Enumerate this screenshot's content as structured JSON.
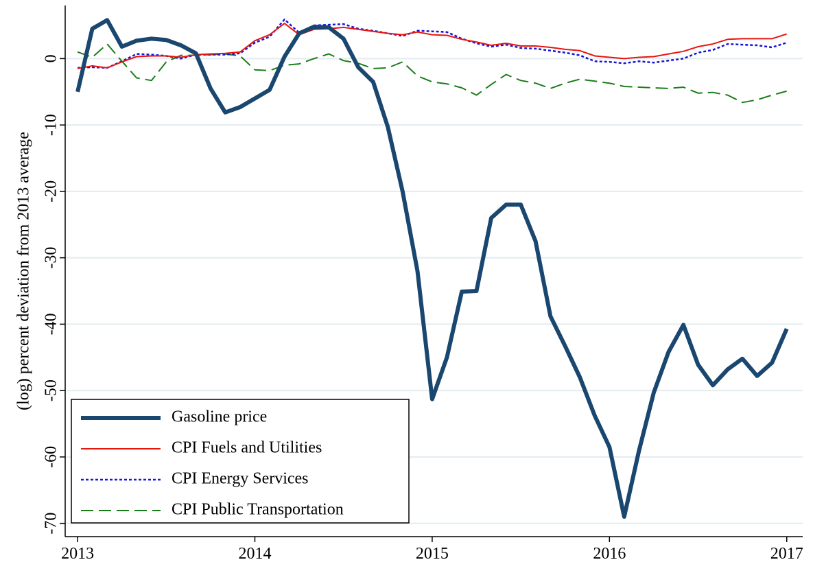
{
  "chart_data": {
    "type": "line",
    "ylabel": "(log) percent deviation from 2013 average",
    "x": [
      2013,
      2013.083,
      2013.167,
      2013.25,
      2013.333,
      2013.417,
      2013.5,
      2013.583,
      2013.667,
      2013.75,
      2013.833,
      2013.917,
      2014,
      2014.083,
      2014.167,
      2014.25,
      2014.333,
      2014.417,
      2014.5,
      2014.583,
      2014.667,
      2014.75,
      2014.833,
      2014.917,
      2015,
      2015.083,
      2015.167,
      2015.25,
      2015.333,
      2015.417,
      2015.5,
      2015.583,
      2015.667,
      2015.75,
      2015.833,
      2015.917,
      2016,
      2016.083,
      2016.167,
      2016.25,
      2016.333,
      2016.417,
      2016.5,
      2016.583,
      2016.667,
      2016.75,
      2016.833,
      2016.917,
      2017
    ],
    "series": [
      {
        "name": "Gasoline price",
        "color": "#1a476f",
        "style": "thick",
        "values": [
          -5,
          4.5,
          5.8,
          1.8,
          2.7,
          3.0,
          2.8,
          2.0,
          0.8,
          -4.5,
          -8.1,
          -7.3,
          -6,
          -4.7,
          0.3,
          3.8,
          4.8,
          4.7,
          3,
          -1.3,
          -3.5,
          -10.3,
          -20,
          -32,
          -51.3,
          -45,
          -35.1,
          -35,
          -24,
          -22,
          -22,
          -27.5,
          -38.8,
          -43.3,
          -48,
          -53.8,
          -58.5,
          -69,
          -59,
          -50.3,
          -44.2,
          -40.1,
          -46.1,
          -49.2,
          -46.8,
          -45.2,
          -47.8,
          -45.8,
          -40.7
        ]
      },
      {
        "name": "CPI Fuels and Utilities",
        "color": "#e8150f",
        "style": "solid",
        "values": [
          -1.5,
          -1.1,
          -1.4,
          -0.5,
          0.3,
          0.4,
          0.4,
          0.2,
          0.6,
          0.7,
          0.8,
          1,
          2.7,
          3.6,
          5.3,
          3.6,
          4.4,
          4.5,
          4.7,
          4.4,
          4.1,
          3.8,
          3.6,
          4,
          3.6,
          3.5,
          2.9,
          2.5,
          2,
          2.3,
          1.9,
          1.9,
          1.7,
          1.4,
          1.2,
          0.4,
          0.2,
          0,
          0.2,
          0.3,
          0.7,
          1.1,
          1.8,
          2.2,
          2.9,
          3,
          3,
          3,
          3.7
        ]
      },
      {
        "name": "CPI Energy Services",
        "color": "#1515d8",
        "style": "dotted",
        "values": [
          -1.4,
          -1.3,
          -1.4,
          -0.4,
          0.7,
          0.6,
          0.4,
          0,
          0.6,
          0.6,
          0.6,
          0.8,
          2.4,
          3.3,
          5.9,
          3.9,
          5,
          5.1,
          5.2,
          4.5,
          4.2,
          3.8,
          3.4,
          4.2,
          4.1,
          4,
          3,
          2.3,
          1.8,
          2.1,
          1.6,
          1.5,
          1.2,
          0.9,
          0.5,
          -0.4,
          -0.5,
          -0.7,
          -0.4,
          -0.6,
          -0.3,
          0,
          0.9,
          1.3,
          2.2,
          2.1,
          2,
          1.7,
          2.4
        ]
      },
      {
        "name": "CPI Public Transportation",
        "color": "#1a7d1a",
        "style": "dashed",
        "values": [
          1,
          0.2,
          2.2,
          -0.4,
          -2.9,
          -3.3,
          -0.5,
          0.5,
          0.5,
          0.6,
          0.7,
          0.4,
          -1.7,
          -1.8,
          -1,
          -0.8,
          0,
          0.7,
          -0.3,
          -0.7,
          -1.5,
          -1.4,
          -0.5,
          -2.6,
          -3.5,
          -3.8,
          -4.4,
          -5.5,
          -3.9,
          -2.4,
          -3.3,
          -3.7,
          -4.5,
          -3.7,
          -3.1,
          -3.4,
          -3.7,
          -4.2,
          -4.3,
          -4.4,
          -4.5,
          -4.3,
          -5.2,
          -5.1,
          -5.5,
          -6.6,
          -6.2,
          -5.5,
          -4.9
        ]
      }
    ],
    "xlim": [
      2012.93,
      2017.09
    ],
    "xticks": [
      2013,
      2014,
      2015,
      2016,
      2017
    ],
    "ylim": [
      -72,
      8
    ],
    "yticks": [
      -70,
      -60,
      -50,
      -40,
      -30,
      -20,
      -10,
      0
    ],
    "grid": true,
    "legend": "bottom-left"
  }
}
